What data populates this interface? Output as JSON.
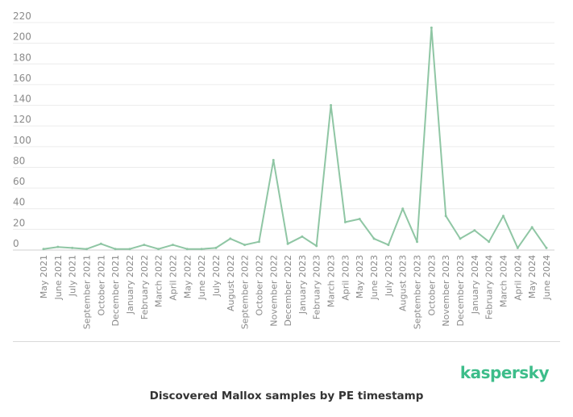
{
  "chart_data": {
    "type": "line",
    "title": "Discovered Mallox samples by PE timestamp",
    "xlabel": "",
    "ylabel": "",
    "ylim": [
      0,
      220
    ],
    "yticks": [
      0,
      20,
      40,
      60,
      80,
      100,
      120,
      140,
      160,
      180,
      200,
      220
    ],
    "grid": true,
    "legend": "none",
    "line_color": "#8fc6a4",
    "categories": [
      "May 2021",
      "June 2021",
      "July 2021",
      "September 2021",
      "October 2021",
      "December 2021",
      "January 2022",
      "February 2022",
      "March 2022",
      "April 2022",
      "May 2022",
      "June 2022",
      "July 2022",
      "August 2022",
      "September 2022",
      "October 2022",
      "November 2022",
      "December 2022",
      "January 2023",
      "February 2023",
      "March 2023",
      "April 2023",
      "May 2023",
      "June 2023",
      "July 2023",
      "August 2023",
      "September 2023",
      "October 2023",
      "November 2023",
      "December 2023",
      "January 2024",
      "February 2024",
      "March 2024",
      "April 2024",
      "May 2024",
      "June 2024"
    ],
    "values": [
      1,
      3,
      2,
      1,
      6,
      1,
      1,
      5,
      1,
      5,
      1,
      1,
      2,
      11,
      5,
      8,
      87,
      6,
      13,
      4,
      140,
      27,
      30,
      11,
      5,
      40,
      8,
      215,
      33,
      11,
      19,
      8,
      33,
      2,
      22,
      2
    ]
  },
  "branding": {
    "logo_text": "kaspersky",
    "logo_color": "#3dbd8a"
  },
  "caption": "Discovered Mallox samples by PE timestamp"
}
